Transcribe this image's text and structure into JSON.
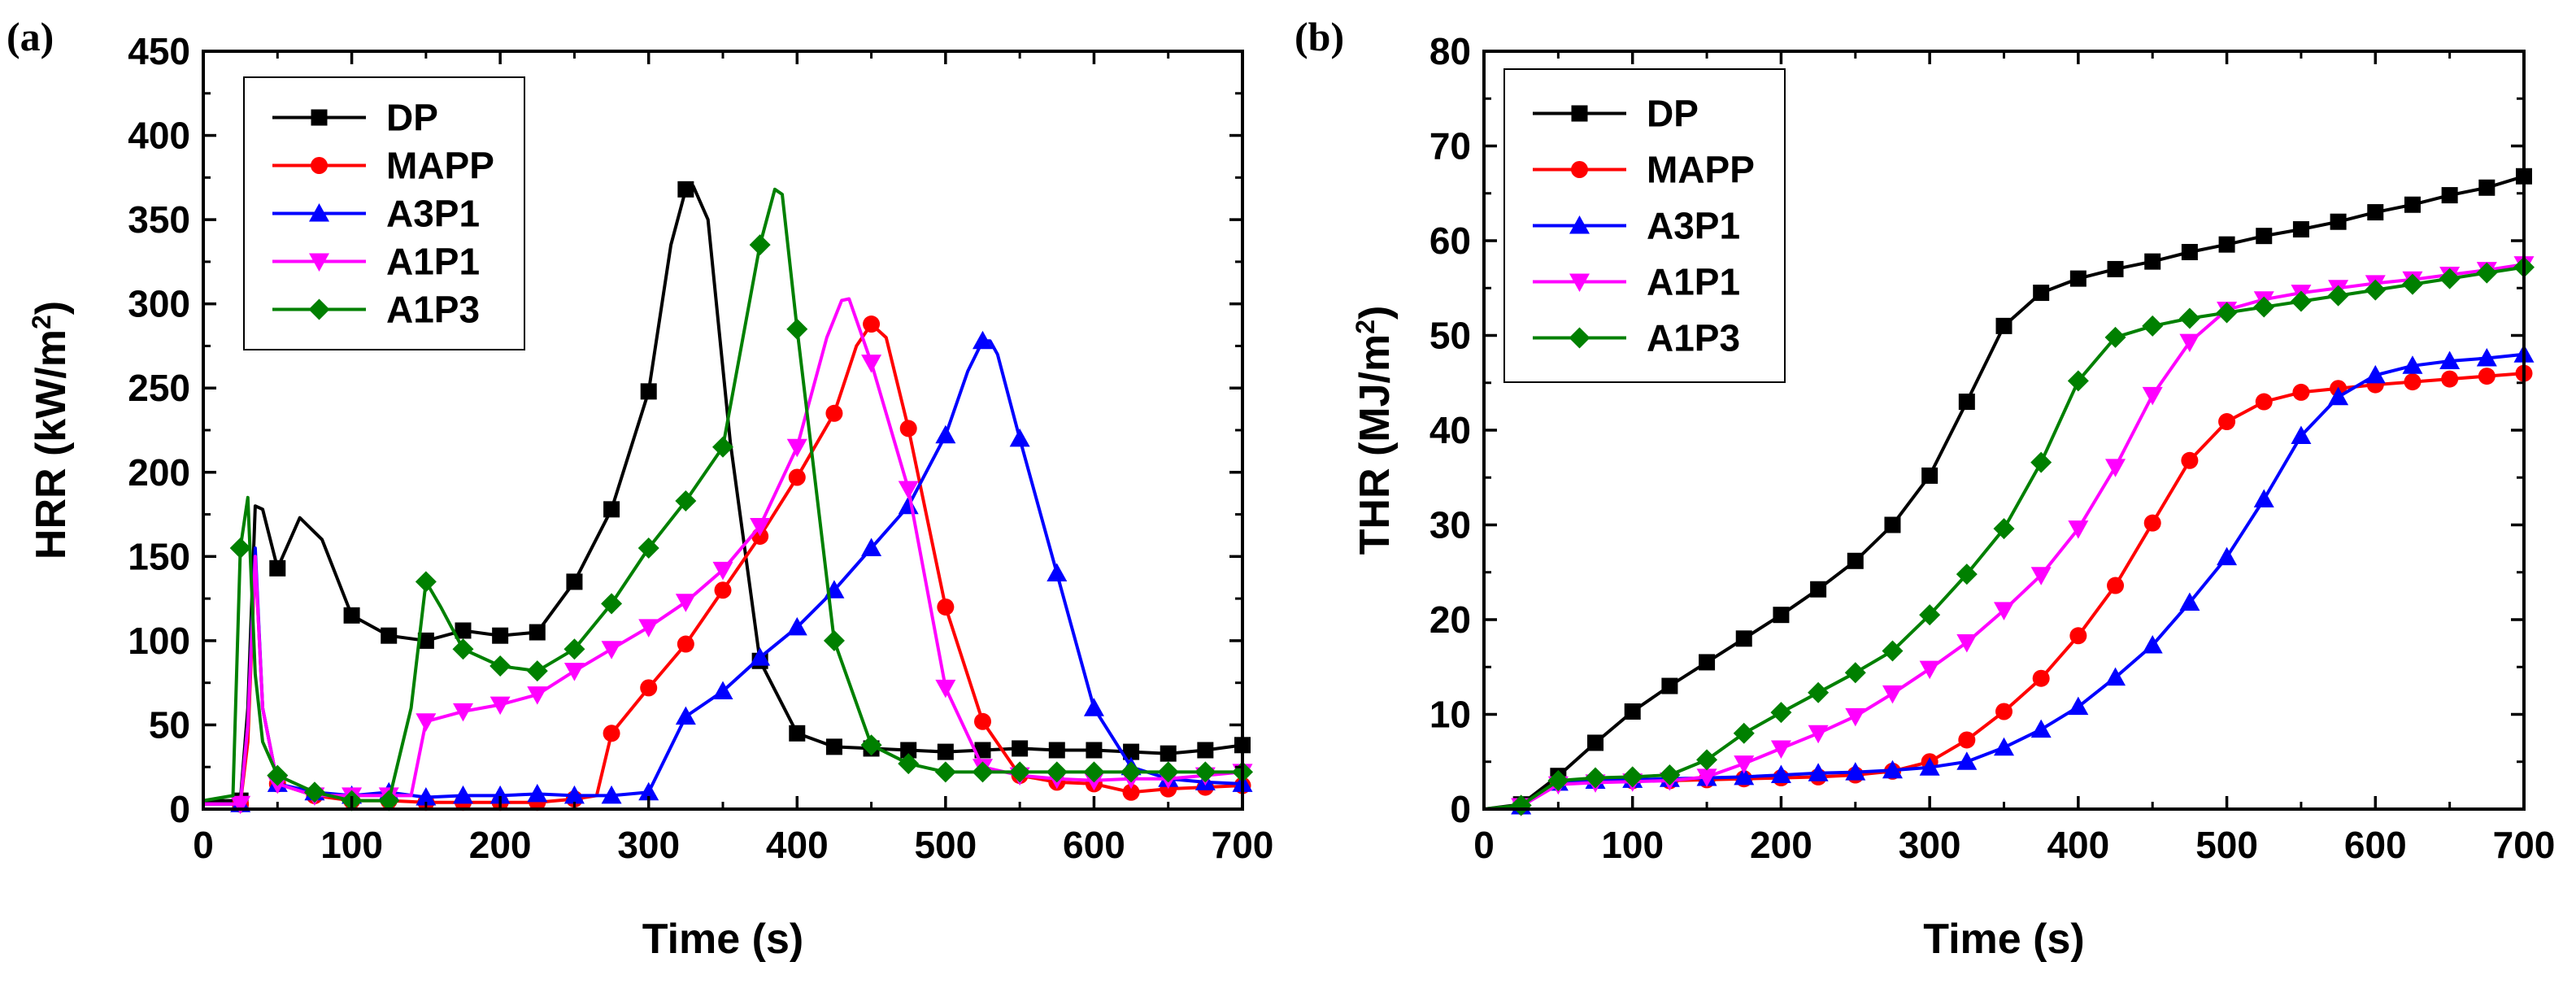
{
  "chart_data": [
    {
      "type": "line",
      "panel_label": "(a)",
      "xlabel": "Time (s)",
      "ylabel_prefix": "HRR (kW/m",
      "ylabel_sup": "2",
      "ylabel_suffix": ")",
      "xlim": [
        0,
        700
      ],
      "ylim": [
        0,
        450
      ],
      "xticks": [
        0,
        100,
        200,
        300,
        400,
        500,
        600,
        700
      ],
      "yticks": [
        0,
        50,
        100,
        150,
        200,
        250,
        300,
        350,
        400,
        450
      ],
      "legend_position": "top-left",
      "series": [
        {
          "name": "DP",
          "color": "#000000",
          "marker": "square",
          "x": [
            0,
            25,
            30,
            35,
            40,
            50,
            65,
            80,
            100,
            125,
            150,
            175,
            200,
            225,
            250,
            275,
            300,
            315,
            325,
            330,
            340,
            355,
            375,
            400,
            425,
            450,
            475,
            500,
            525,
            550,
            575,
            600,
            625,
            650,
            675,
            700
          ],
          "y": [
            5,
            5,
            60,
            180,
            178,
            143,
            173,
            160,
            115,
            103,
            100,
            106,
            103,
            105,
            135,
            178,
            248,
            335,
            368,
            370,
            350,
            218,
            88,
            45,
            37,
            36,
            35,
            34,
            35,
            36,
            35,
            35,
            34,
            33,
            35,
            38
          ]
        },
        {
          "name": "MAPP",
          "color": "#ff0000",
          "marker": "circle",
          "x": [
            0,
            25,
            30,
            35,
            40,
            50,
            75,
            100,
            125,
            150,
            175,
            200,
            225,
            250,
            265,
            275,
            300,
            325,
            350,
            375,
            400,
            425,
            440,
            450,
            460,
            475,
            500,
            525,
            550,
            575,
            600,
            625,
            650,
            675,
            700
          ],
          "y": [
            3,
            3,
            40,
            150,
            60,
            15,
            8,
            5,
            5,
            4,
            4,
            4,
            4,
            6,
            8,
            45,
            72,
            98,
            130,
            162,
            197,
            235,
            275,
            288,
            280,
            226,
            120,
            52,
            20,
            16,
            15,
            10,
            12,
            13,
            14
          ]
        },
        {
          "name": "A3P1",
          "color": "#0000ff",
          "marker": "triangle-up",
          "x": [
            0,
            25,
            30,
            35,
            40,
            50,
            75,
            100,
            125,
            150,
            175,
            200,
            225,
            250,
            275,
            300,
            325,
            350,
            375,
            400,
            425,
            450,
            475,
            500,
            515,
            525,
            530,
            535,
            550,
            575,
            600,
            625,
            650,
            675,
            700
          ],
          "y": [
            3,
            3,
            50,
            155,
            60,
            15,
            10,
            8,
            10,
            7,
            8,
            8,
            9,
            8,
            8,
            10,
            55,
            70,
            90,
            108,
            130,
            155,
            180,
            222,
            260,
            278,
            278,
            270,
            220,
            140,
            60,
            25,
            18,
            16,
            15
          ]
        },
        {
          "name": "A1P1",
          "color": "#ff00ff",
          "marker": "triangle-down",
          "x": [
            0,
            25,
            30,
            35,
            40,
            50,
            75,
            100,
            125,
            140,
            150,
            175,
            200,
            225,
            250,
            275,
            300,
            325,
            350,
            375,
            400,
            420,
            430,
            435,
            450,
            475,
            500,
            525,
            550,
            575,
            600,
            625,
            650,
            675,
            700
          ],
          "y": [
            3,
            3,
            50,
            150,
            60,
            15,
            8,
            8,
            8,
            8,
            52,
            58,
            62,
            68,
            82,
            95,
            108,
            123,
            142,
            168,
            215,
            280,
            302,
            303,
            265,
            190,
            72,
            25,
            20,
            18,
            17,
            18,
            18,
            20,
            22
          ]
        },
        {
          "name": "A1P3",
          "color": "#008000",
          "marker": "diamond",
          "x": [
            0,
            20,
            25,
            30,
            35,
            40,
            50,
            75,
            100,
            125,
            140,
            150,
            160,
            175,
            200,
            225,
            250,
            275,
            300,
            325,
            350,
            375,
            385,
            390,
            400,
            425,
            450,
            475,
            500,
            525,
            550,
            575,
            600,
            625,
            650,
            675,
            700
          ],
          "y": [
            5,
            8,
            155,
            185,
            80,
            40,
            20,
            10,
            5,
            5,
            60,
            135,
            120,
            95,
            85,
            82,
            95,
            122,
            155,
            183,
            215,
            335,
            368,
            365,
            285,
            100,
            38,
            27,
            22,
            22,
            22,
            22,
            22,
            22,
            22,
            22,
            22
          ]
        }
      ]
    },
    {
      "type": "line",
      "panel_label": "(b)",
      "xlabel": "Time (s)",
      "ylabel_prefix": "THR (MJ/m",
      "ylabel_sup": "2",
      "ylabel_suffix": ")",
      "xlim": [
        0,
        700
      ],
      "ylim": [
        0,
        80
      ],
      "xticks": [
        0,
        100,
        200,
        300,
        400,
        500,
        600,
        700
      ],
      "yticks": [
        0,
        10,
        20,
        30,
        40,
        50,
        60,
        70,
        80
      ],
      "legend_position": "top-left",
      "series": [
        {
          "name": "DP",
          "color": "#000000",
          "marker": "square",
          "x": [
            0,
            25,
            50,
            75,
            100,
            125,
            150,
            175,
            200,
            225,
            250,
            275,
            300,
            325,
            350,
            375,
            400,
            425,
            450,
            475,
            500,
            525,
            550,
            575,
            600,
            625,
            650,
            675,
            700
          ],
          "y": [
            0,
            0.5,
            3.5,
            7,
            10.3,
            13,
            15.5,
            18,
            20.5,
            23.2,
            26.2,
            30,
            35.2,
            43,
            51,
            54.5,
            56,
            57,
            57.8,
            58.8,
            59.6,
            60.5,
            61.2,
            62,
            63,
            63.8,
            64.8,
            65.6,
            66.8
          ]
        },
        {
          "name": "MAPP",
          "color": "#ff0000",
          "marker": "circle",
          "x": [
            0,
            25,
            50,
            75,
            100,
            125,
            150,
            175,
            200,
            225,
            250,
            275,
            300,
            325,
            350,
            375,
            400,
            425,
            450,
            475,
            500,
            525,
            550,
            575,
            600,
            625,
            650,
            675,
            700
          ],
          "y": [
            0,
            0.3,
            2.8,
            3,
            3,
            3,
            3.1,
            3.2,
            3.3,
            3.4,
            3.6,
            4,
            5,
            7.3,
            10.3,
            13.8,
            18.3,
            23.6,
            30.2,
            36.8,
            40.9,
            43,
            44,
            44.4,
            44.8,
            45.1,
            45.4,
            45.7,
            46
          ]
        },
        {
          "name": "A3P1",
          "color": "#0000ff",
          "marker": "triangle-up",
          "x": [
            0,
            25,
            50,
            75,
            100,
            125,
            150,
            175,
            200,
            225,
            250,
            275,
            300,
            325,
            350,
            375,
            400,
            425,
            450,
            475,
            500,
            525,
            550,
            575,
            600,
            625,
            650,
            675,
            700
          ],
          "y": [
            0,
            0.3,
            2.8,
            3,
            3.1,
            3.2,
            3.3,
            3.4,
            3.6,
            3.8,
            3.9,
            4.1,
            4.4,
            5,
            6.5,
            8.4,
            10.8,
            13.9,
            17.3,
            21.8,
            26.6,
            32.7,
            39.4,
            43.5,
            45.8,
            46.8,
            47.3,
            47.6,
            48
          ]
        },
        {
          "name": "A1P1",
          "color": "#ff00ff",
          "marker": "triangle-down",
          "x": [
            0,
            25,
            50,
            75,
            100,
            125,
            150,
            175,
            200,
            225,
            250,
            275,
            300,
            325,
            350,
            375,
            400,
            425,
            450,
            475,
            500,
            525,
            550,
            575,
            600,
            625,
            650,
            675,
            700
          ],
          "y": [
            0,
            0.3,
            2.6,
            2.8,
            2.9,
            3,
            3.4,
            4.8,
            6.4,
            8,
            9.8,
            12.2,
            14.8,
            17.6,
            21,
            24.7,
            29.6,
            36.1,
            43.7,
            49.3,
            52.7,
            53.8,
            54.5,
            55,
            55.5,
            55.9,
            56.4,
            56.9,
            57.5
          ]
        },
        {
          "name": "A1P3",
          "color": "#008000",
          "marker": "diamond",
          "x": [
            0,
            25,
            50,
            75,
            100,
            125,
            150,
            175,
            200,
            225,
            250,
            275,
            300,
            325,
            350,
            375,
            400,
            425,
            450,
            475,
            500,
            525,
            550,
            575,
            600,
            625,
            650,
            675,
            700
          ],
          "y": [
            0,
            0.4,
            3,
            3.3,
            3.4,
            3.6,
            5.2,
            8,
            10.2,
            12.3,
            14.4,
            16.7,
            20.5,
            24.8,
            29.6,
            36.6,
            45.2,
            49.8,
            51,
            51.8,
            52.4,
            53,
            53.6,
            54.2,
            54.8,
            55.4,
            56,
            56.6,
            57.2
          ]
        }
      ]
    }
  ]
}
